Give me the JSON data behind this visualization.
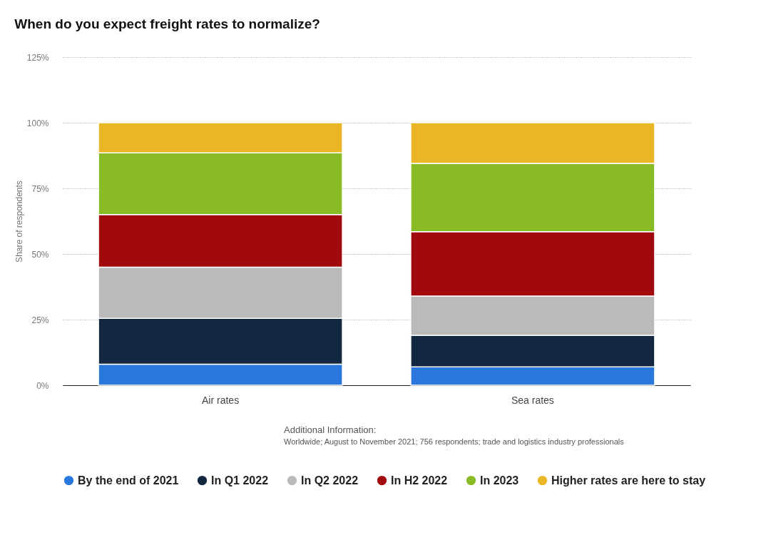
{
  "chart_data": {
    "type": "bar",
    "title": "When do you expect freight rates to normalize?",
    "ylabel": "Share of respondents",
    "categories": [
      "Air rates",
      "Sea rates"
    ],
    "stacked": true,
    "series": [
      {
        "name": "By the end of 2021",
        "color": "#2a78de",
        "values": [
          8,
          7
        ]
      },
      {
        "name": "In Q1 2022",
        "color": "#12263f",
        "values": [
          17.5,
          12
        ]
      },
      {
        "name": "In Q2 2022",
        "color": "#bababa",
        "values": [
          19.5,
          15
        ]
      },
      {
        "name": "In H2 2022",
        "color": "#a10a0c",
        "values": [
          20,
          24.5
        ]
      },
      {
        "name": "In 2023",
        "color": "#89bb26",
        "values": [
          23.5,
          26
        ]
      },
      {
        "name": "Higher rates are here to stay",
        "color": "#ebb626",
        "values": [
          11.5,
          15.5
        ]
      }
    ],
    "ylim": [
      0,
      125
    ],
    "yticks": [
      {
        "value": 0,
        "label": "0%"
      },
      {
        "value": 25,
        "label": "25%"
      },
      {
        "value": 50,
        "label": "50%"
      },
      {
        "value": 75,
        "label": "75%"
      },
      {
        "value": 100,
        "label": "100%"
      },
      {
        "value": 125,
        "label": "125%"
      }
    ],
    "grid": "y",
    "legend": "bottom",
    "annotations": [
      "Additional Information:",
      "Worldwide; August to November 2021; 756 respondents; trade and logistics industry professionals"
    ]
  }
}
